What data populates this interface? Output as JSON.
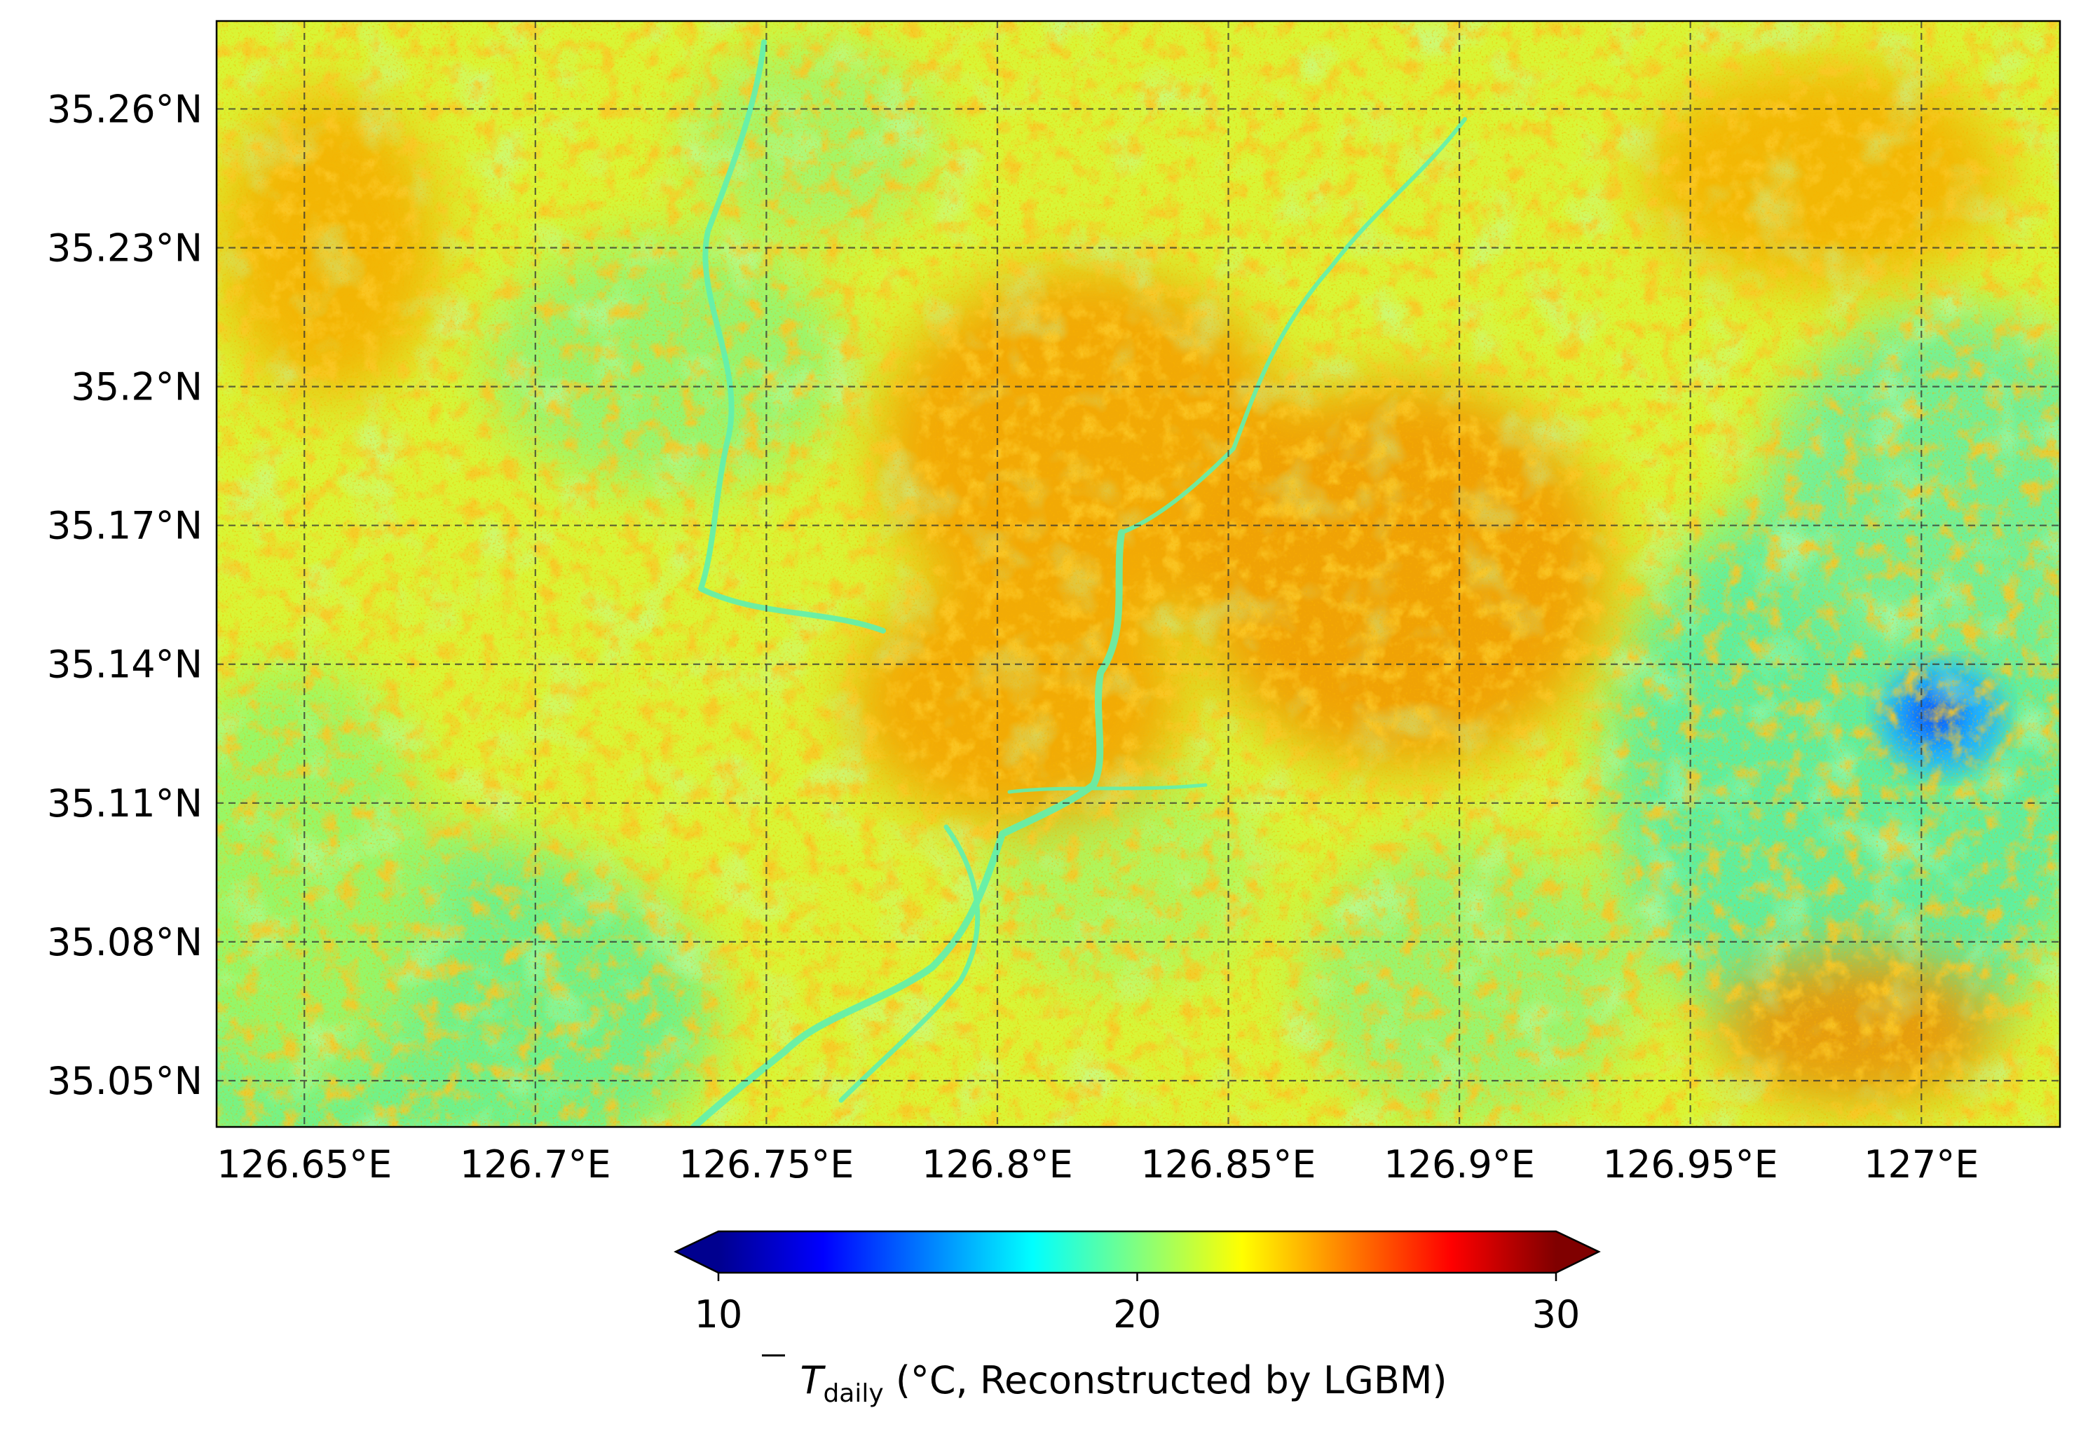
{
  "map": {
    "longitude_ticks": [
      "126.65°E",
      "126.7°E",
      "126.75°E",
      "126.8°E",
      "126.85°E",
      "126.9°E",
      "126.95°E",
      "127°E"
    ],
    "longitude_values": [
      126.65,
      126.7,
      126.75,
      126.8,
      126.85,
      126.9,
      126.95,
      127.0
    ],
    "latitude_ticks": [
      "35.26°N",
      "35.23°N",
      "35.2°N",
      "35.17°N",
      "35.14°N",
      "35.11°N",
      "35.08°N",
      "35.05°N"
    ],
    "latitude_values": [
      35.26,
      35.23,
      35.2,
      35.17,
      35.14,
      35.11,
      35.08,
      35.05
    ],
    "lon_range": [
      126.631,
      127.03
    ],
    "lat_range": [
      35.04,
      35.279
    ],
    "gridlines": "dashed",
    "colormap": "jet",
    "field_description_colors": {
      "cool": "#36f0c8",
      "mild": "#b4ff4a",
      "warm": "#f7ea12",
      "hot": "#f59a00",
      "coldest": "#0a4fff"
    }
  },
  "colorbar": {
    "ticks": [
      "10",
      "20",
      "30"
    ],
    "tick_values": [
      10,
      20,
      30
    ],
    "range": [
      10,
      30
    ],
    "extend": "both",
    "label_symbol": "T",
    "label_subscript": "daily",
    "label_rest": " (°C, Reconstructed by LGBM)"
  }
}
